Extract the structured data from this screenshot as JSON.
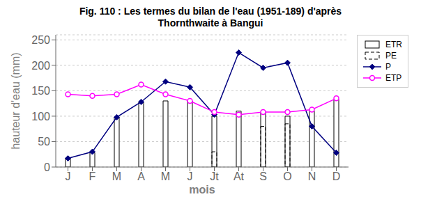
{
  "chart_data": {
    "type": "bar",
    "title": "Fig. 110 : Les termes du bilan de l'eau (1951-189) d'après",
    "subtitle": "Thornthwaite à Bangui",
    "x_label": "mois",
    "y_label": "hauteur d'eau (mm)",
    "categories": [
      "J",
      "F",
      "M",
      "A",
      "M",
      "J",
      "Jt",
      "At",
      "S",
      "O",
      "N",
      "D"
    ],
    "series": [
      {
        "name": "ETR",
        "type": "bar",
        "color": "#ffffff",
        "values": [
          17,
          28,
          98,
          128,
          130,
          130,
          100,
          110,
          108,
          100,
          110,
          133
        ]
      },
      {
        "name": "PE",
        "type": "bar",
        "line_style": "dashed",
        "values": [
          0,
          0,
          0,
          0,
          0,
          0,
          30,
          0,
          80,
          85,
          0,
          0
        ]
      },
      {
        "name": "P",
        "type": "line",
        "color": "#000080",
        "marker": "diamond",
        "values": [
          17,
          30,
          98,
          128,
          168,
          157,
          103,
          225,
          195,
          205,
          80,
          28
        ]
      },
      {
        "name": "ETP",
        "type": "line",
        "color": "#FF00FF",
        "marker": "circle",
        "values": [
          143,
          140,
          143,
          162,
          143,
          130,
          108,
          103,
          108,
          108,
          113,
          135
        ]
      }
    ],
    "ylim": [
      0,
      260
    ],
    "yticks": [
      0,
      50,
      100,
      150,
      200,
      250
    ],
    "grid": true,
    "legend": "right"
  }
}
